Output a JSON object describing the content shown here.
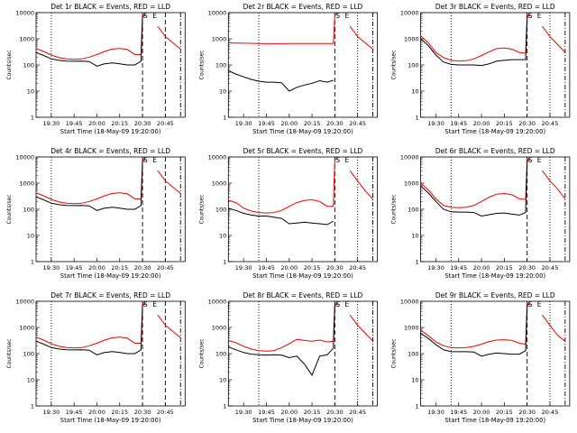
{
  "figure": {
    "background": "#ffffff",
    "axis_color": "#000000",
    "events_color": "#000000",
    "lld_color": "#ff0000",
    "ylabel": "Counts/sec",
    "xlabel": "Start Time (18-May-09 19:20:00)",
    "x_ticks": [
      "19:30",
      "19:45",
      "20:00",
      "20:15",
      "20:30",
      "20:45"
    ],
    "y_ticks": [
      "1",
      "10",
      "100",
      "1000",
      "10000"
    ],
    "ylim": [
      1,
      10000
    ],
    "y_scale": "log",
    "markers": [
      {
        "label": "S",
        "time": "20:32"
      },
      {
        "label": "E",
        "time": "20:38"
      }
    ]
  },
  "chart_data": [
    {
      "type": "line",
      "title": "Det 1r BLACK = Events, RED = LLD",
      "x": [
        "19:20",
        "19:25",
        "19:30",
        "19:35",
        "19:40",
        "19:45",
        "19:50",
        "19:55",
        "20:00",
        "20:05",
        "20:10",
        "20:15",
        "20:20",
        "20:25",
        "20:29",
        "20:30",
        "20:32",
        "20:35",
        "20:40",
        "20:45",
        "20:50",
        "20:55"
      ],
      "series": [
        {
          "values": [
            420,
            330,
            240,
            190,
            170,
            165,
            170,
            200,
            250,
            330,
            400,
            430,
            390,
            250,
            250,
            8000,
            9000,
            null,
            null,
            null,
            null,
            null
          ]
        },
        {
          "values": [
            300,
            230,
            170,
            150,
            140,
            138,
            140,
            135,
            90,
            110,
            120,
            110,
            100,
            100,
            140,
            7000,
            8000,
            null,
            null,
            null,
            null,
            null
          ]
        },
        {
          "values": [
            null,
            null,
            null,
            null,
            null,
            null,
            null,
            null,
            null,
            null,
            null,
            null,
            null,
            null,
            null,
            null,
            null,
            null,
            3000,
            1200,
            700,
            400
          ]
        }
      ],
      "vlines": [
        {
          "time": "19:30",
          "style": "dotted"
        },
        {
          "time": "20:30",
          "style": "dashed"
        },
        {
          "time": "20:45",
          "style": "dashed"
        },
        {
          "time": "20:55",
          "style": "dashdot"
        }
      ]
    },
    {
      "type": "line",
      "title": "Det 2r BLACK = Events, RED = LLD",
      "x": [
        "19:20",
        "19:25",
        "19:30",
        "19:35",
        "19:40",
        "19:45",
        "19:50",
        "19:55",
        "20:00",
        "20:05",
        "20:10",
        "20:15",
        "20:20",
        "20:25",
        "20:29",
        "20:30",
        "20:32",
        "20:35",
        "20:40",
        "20:45",
        "20:50",
        "20:55"
      ],
      "series": [
        {
          "values": [
            700,
            690,
            680,
            670,
            660,
            650,
            650,
            650,
            660,
            660,
            660,
            660,
            660,
            660,
            660,
            8000,
            9000,
            null,
            null,
            null,
            null,
            null
          ]
        },
        {
          "values": [
            60,
            45,
            35,
            28,
            24,
            22,
            22,
            21,
            10,
            14,
            17,
            20,
            25,
            22,
            26,
            null,
            null,
            null,
            null,
            null,
            null,
            null
          ]
        },
        {
          "values": [
            null,
            null,
            null,
            null,
            null,
            null,
            null,
            null,
            null,
            null,
            null,
            null,
            null,
            null,
            null,
            null,
            null,
            null,
            3000,
            1200,
            700,
            400
          ]
        }
      ],
      "vlines": [
        {
          "time": "19:40",
          "style": "dotted"
        },
        {
          "time": "20:30",
          "style": "dashed"
        },
        {
          "time": "20:45",
          "style": "dotted"
        },
        {
          "time": "20:55",
          "style": "dashdot"
        }
      ]
    },
    {
      "type": "line",
      "title": "Det 3r BLACK = Events, RED = LLD",
      "x": [
        "19:20",
        "19:25",
        "19:30",
        "19:35",
        "19:40",
        "19:45",
        "19:50",
        "19:55",
        "20:00",
        "20:05",
        "20:10",
        "20:15",
        "20:20",
        "20:25",
        "20:29",
        "20:30",
        "20:32",
        "20:35",
        "20:40",
        "20:45",
        "20:50",
        "20:55"
      ],
      "series": [
        {
          "values": [
            1300,
            700,
            300,
            190,
            150,
            140,
            145,
            170,
            230,
            320,
            420,
            450,
            400,
            300,
            280,
            8000,
            9000,
            null,
            null,
            null,
            null,
            null
          ]
        },
        {
          "values": [
            1000,
            550,
            240,
            130,
            105,
            100,
            100,
            100,
            95,
            110,
            140,
            150,
            160,
            160,
            160,
            7000,
            8000,
            null,
            null,
            null,
            null,
            null
          ]
        },
        {
          "values": [
            null,
            null,
            null,
            null,
            null,
            null,
            null,
            null,
            null,
            null,
            null,
            null,
            null,
            null,
            null,
            null,
            null,
            null,
            3000,
            1200,
            600,
            300
          ]
        }
      ],
      "vlines": [
        {
          "time": "19:40",
          "style": "dotted"
        },
        {
          "time": "20:30",
          "style": "dashed"
        },
        {
          "time": "20:45",
          "style": "dotted"
        },
        {
          "time": "20:55",
          "style": "dashdot"
        }
      ]
    },
    {
      "type": "line",
      "title": "Det 4r BLACK = Events, RED = LLD",
      "x": [
        "19:20",
        "19:25",
        "19:30",
        "19:35",
        "19:40",
        "19:45",
        "19:50",
        "19:55",
        "20:00",
        "20:05",
        "20:10",
        "20:15",
        "20:20",
        "20:25",
        "20:29",
        "20:30",
        "20:32",
        "20:35",
        "20:40",
        "20:45",
        "20:50",
        "20:55"
      ],
      "series": [
        {
          "values": [
            420,
            330,
            240,
            190,
            170,
            165,
            170,
            200,
            250,
            330,
            400,
            430,
            390,
            250,
            250,
            8000,
            9000,
            null,
            null,
            null,
            null,
            null
          ]
        },
        {
          "values": [
            300,
            230,
            170,
            150,
            140,
            138,
            140,
            135,
            90,
            110,
            120,
            110,
            100,
            100,
            140,
            7000,
            8000,
            null,
            null,
            null,
            null,
            null
          ]
        },
        {
          "values": [
            null,
            null,
            null,
            null,
            null,
            null,
            null,
            null,
            null,
            null,
            null,
            null,
            null,
            null,
            null,
            null,
            null,
            null,
            3000,
            1200,
            700,
            400
          ]
        }
      ],
      "vlines": [
        {
          "time": "19:30",
          "style": "dotted"
        },
        {
          "time": "20:30",
          "style": "dashed"
        },
        {
          "time": "20:45",
          "style": "dashed"
        },
        {
          "time": "20:55",
          "style": "dashdot"
        }
      ]
    },
    {
      "type": "line",
      "title": "Det 5r BLACK = Events, RED = LLD",
      "x": [
        "19:20",
        "19:25",
        "19:30",
        "19:35",
        "19:40",
        "19:45",
        "19:50",
        "19:55",
        "20:00",
        "20:05",
        "20:10",
        "20:15",
        "20:20",
        "20:25",
        "20:29",
        "20:30",
        "20:32",
        "20:35",
        "20:40",
        "20:45",
        "20:50",
        "20:55"
      ],
      "series": [
        {
          "values": [
            220,
            180,
            110,
            85,
            75,
            72,
            75,
            90,
            130,
            180,
            220,
            230,
            200,
            130,
            130,
            8000,
            9000,
            null,
            null,
            null,
            null,
            null
          ]
        },
        {
          "values": [
            110,
            90,
            70,
            60,
            55,
            55,
            50,
            45,
            28,
            30,
            32,
            30,
            28,
            26,
            35,
            null,
            null,
            null,
            null,
            null,
            null,
            null
          ]
        },
        {
          "values": [
            null,
            null,
            null,
            null,
            null,
            null,
            null,
            null,
            null,
            null,
            null,
            null,
            null,
            null,
            null,
            null,
            null,
            null,
            3000,
            1200,
            500,
            250
          ]
        }
      ],
      "vlines": [
        {
          "time": "19:40",
          "style": "dotted"
        },
        {
          "time": "20:30",
          "style": "dashed"
        },
        {
          "time": "20:45",
          "style": "dotted"
        },
        {
          "time": "20:55",
          "style": "dashdot"
        }
      ]
    },
    {
      "type": "line",
      "title": "Det 6r BLACK = Events, RED = LLD",
      "x": [
        "19:20",
        "19:25",
        "19:30",
        "19:35",
        "19:40",
        "19:45",
        "19:50",
        "19:55",
        "20:00",
        "20:05",
        "20:10",
        "20:15",
        "20:20",
        "20:25",
        "20:29",
        "20:30",
        "20:32",
        "20:35",
        "20:40",
        "20:45",
        "20:50",
        "20:55"
      ],
      "series": [
        {
          "values": [
            1000,
            550,
            250,
            140,
            120,
            115,
            120,
            140,
            200,
            290,
            380,
            400,
            360,
            250,
            240,
            8000,
            9000,
            null,
            null,
            null,
            null,
            null
          ]
        },
        {
          "values": [
            800,
            420,
            200,
            100,
            80,
            78,
            78,
            75,
            55,
            62,
            70,
            72,
            65,
            60,
            75,
            7000,
            8000,
            null,
            null,
            null,
            null,
            null
          ]
        },
        {
          "values": [
            null,
            null,
            null,
            null,
            null,
            null,
            null,
            null,
            null,
            null,
            null,
            null,
            null,
            null,
            null,
            null,
            null,
            null,
            3000,
            1200,
            600,
            250
          ]
        }
      ],
      "vlines": [
        {
          "time": "19:40",
          "style": "dotted"
        },
        {
          "time": "20:30",
          "style": "dashed"
        },
        {
          "time": "20:45",
          "style": "dotted"
        },
        {
          "time": "20:55",
          "style": "dashdot"
        }
      ]
    },
    {
      "type": "line",
      "title": "Det 7r BLACK = Events, RED = LLD",
      "x": [
        "19:20",
        "19:25",
        "19:30",
        "19:35",
        "19:40",
        "19:45",
        "19:50",
        "19:55",
        "20:00",
        "20:05",
        "20:10",
        "20:15",
        "20:20",
        "20:25",
        "20:29",
        "20:30",
        "20:32",
        "20:35",
        "20:40",
        "20:45",
        "20:50",
        "20:55"
      ],
      "series": [
        {
          "values": [
            420,
            330,
            240,
            190,
            170,
            165,
            170,
            200,
            250,
            330,
            400,
            430,
            390,
            250,
            250,
            8000,
            9000,
            null,
            null,
            null,
            null,
            null
          ]
        },
        {
          "values": [
            300,
            230,
            170,
            150,
            140,
            138,
            140,
            135,
            90,
            110,
            120,
            110,
            100,
            100,
            140,
            7000,
            8000,
            null,
            null,
            null,
            null,
            null
          ]
        },
        {
          "values": [
            null,
            null,
            null,
            null,
            null,
            null,
            null,
            null,
            null,
            null,
            null,
            null,
            null,
            null,
            null,
            null,
            null,
            null,
            3000,
            1200,
            700,
            400
          ]
        }
      ],
      "vlines": [
        {
          "time": "19:30",
          "style": "dotted"
        },
        {
          "time": "20:30",
          "style": "dashed"
        },
        {
          "time": "20:45",
          "style": "dashed"
        },
        {
          "time": "20:55",
          "style": "dashdot"
        }
      ]
    },
    {
      "type": "line",
      "title": "Det 8r BLACK = Events, RED = LLD",
      "x": [
        "19:20",
        "19:25",
        "19:30",
        "19:35",
        "19:40",
        "19:45",
        "19:50",
        "19:55",
        "20:00",
        "20:05",
        "20:10",
        "20:15",
        "20:20",
        "20:25",
        "20:29",
        "20:30",
        "20:32",
        "20:35",
        "20:40",
        "20:45",
        "20:50",
        "20:55"
      ],
      "series": [
        {
          "values": [
            320,
            260,
            190,
            150,
            130,
            125,
            130,
            170,
            240,
            350,
            320,
            300,
            330,
            280,
            300,
            8000,
            9000,
            null,
            null,
            null,
            null,
            null
          ]
        },
        {
          "values": [
            180,
            140,
            110,
            95,
            90,
            88,
            90,
            88,
            70,
            80,
            40,
            15,
            80,
            90,
            160,
            7000,
            8000,
            null,
            null,
            null,
            null,
            null
          ]
        },
        {
          "values": [
            null,
            null,
            null,
            null,
            null,
            null,
            null,
            null,
            null,
            null,
            null,
            null,
            null,
            null,
            null,
            null,
            null,
            null,
            3000,
            1200,
            600,
            300
          ]
        }
      ],
      "vlines": [
        {
          "time": "19:40",
          "style": "dotted"
        },
        {
          "time": "20:30",
          "style": "dashed"
        },
        {
          "time": "20:45",
          "style": "dotted"
        },
        {
          "time": "20:55",
          "style": "dashdot"
        }
      ]
    },
    {
      "type": "line",
      "title": "Det 9r BLACK = Events, RED = LLD",
      "x": [
        "19:20",
        "19:25",
        "19:30",
        "19:35",
        "19:40",
        "19:45",
        "19:50",
        "19:55",
        "20:00",
        "20:05",
        "20:10",
        "20:15",
        "20:20",
        "20:25",
        "20:29",
        "20:30",
        "20:32",
        "20:35",
        "20:40",
        "20:45",
        "20:50",
        "20:55"
      ],
      "series": [
        {
          "values": [
            800,
            480,
            280,
            200,
            170,
            165,
            170,
            190,
            230,
            290,
            330,
            340,
            320,
            250,
            230,
            8000,
            9000,
            null,
            null,
            null,
            null,
            null
          ]
        },
        {
          "values": [
            600,
            380,
            220,
            140,
            120,
            118,
            118,
            115,
            80,
            95,
            105,
            100,
            95,
            95,
            130,
            7000,
            8000,
            null,
            null,
            null,
            null,
            null
          ]
        },
        {
          "values": [
            null,
            null,
            null,
            null,
            null,
            null,
            null,
            null,
            null,
            null,
            null,
            null,
            null,
            null,
            null,
            null,
            null,
            null,
            3000,
            1200,
            500,
            300
          ]
        }
      ],
      "vlines": [
        {
          "time": "19:40",
          "style": "dotted"
        },
        {
          "time": "20:30",
          "style": "dashed"
        },
        {
          "time": "20:45",
          "style": "dotted"
        },
        {
          "time": "20:55",
          "style": "dashdot"
        }
      ]
    }
  ]
}
